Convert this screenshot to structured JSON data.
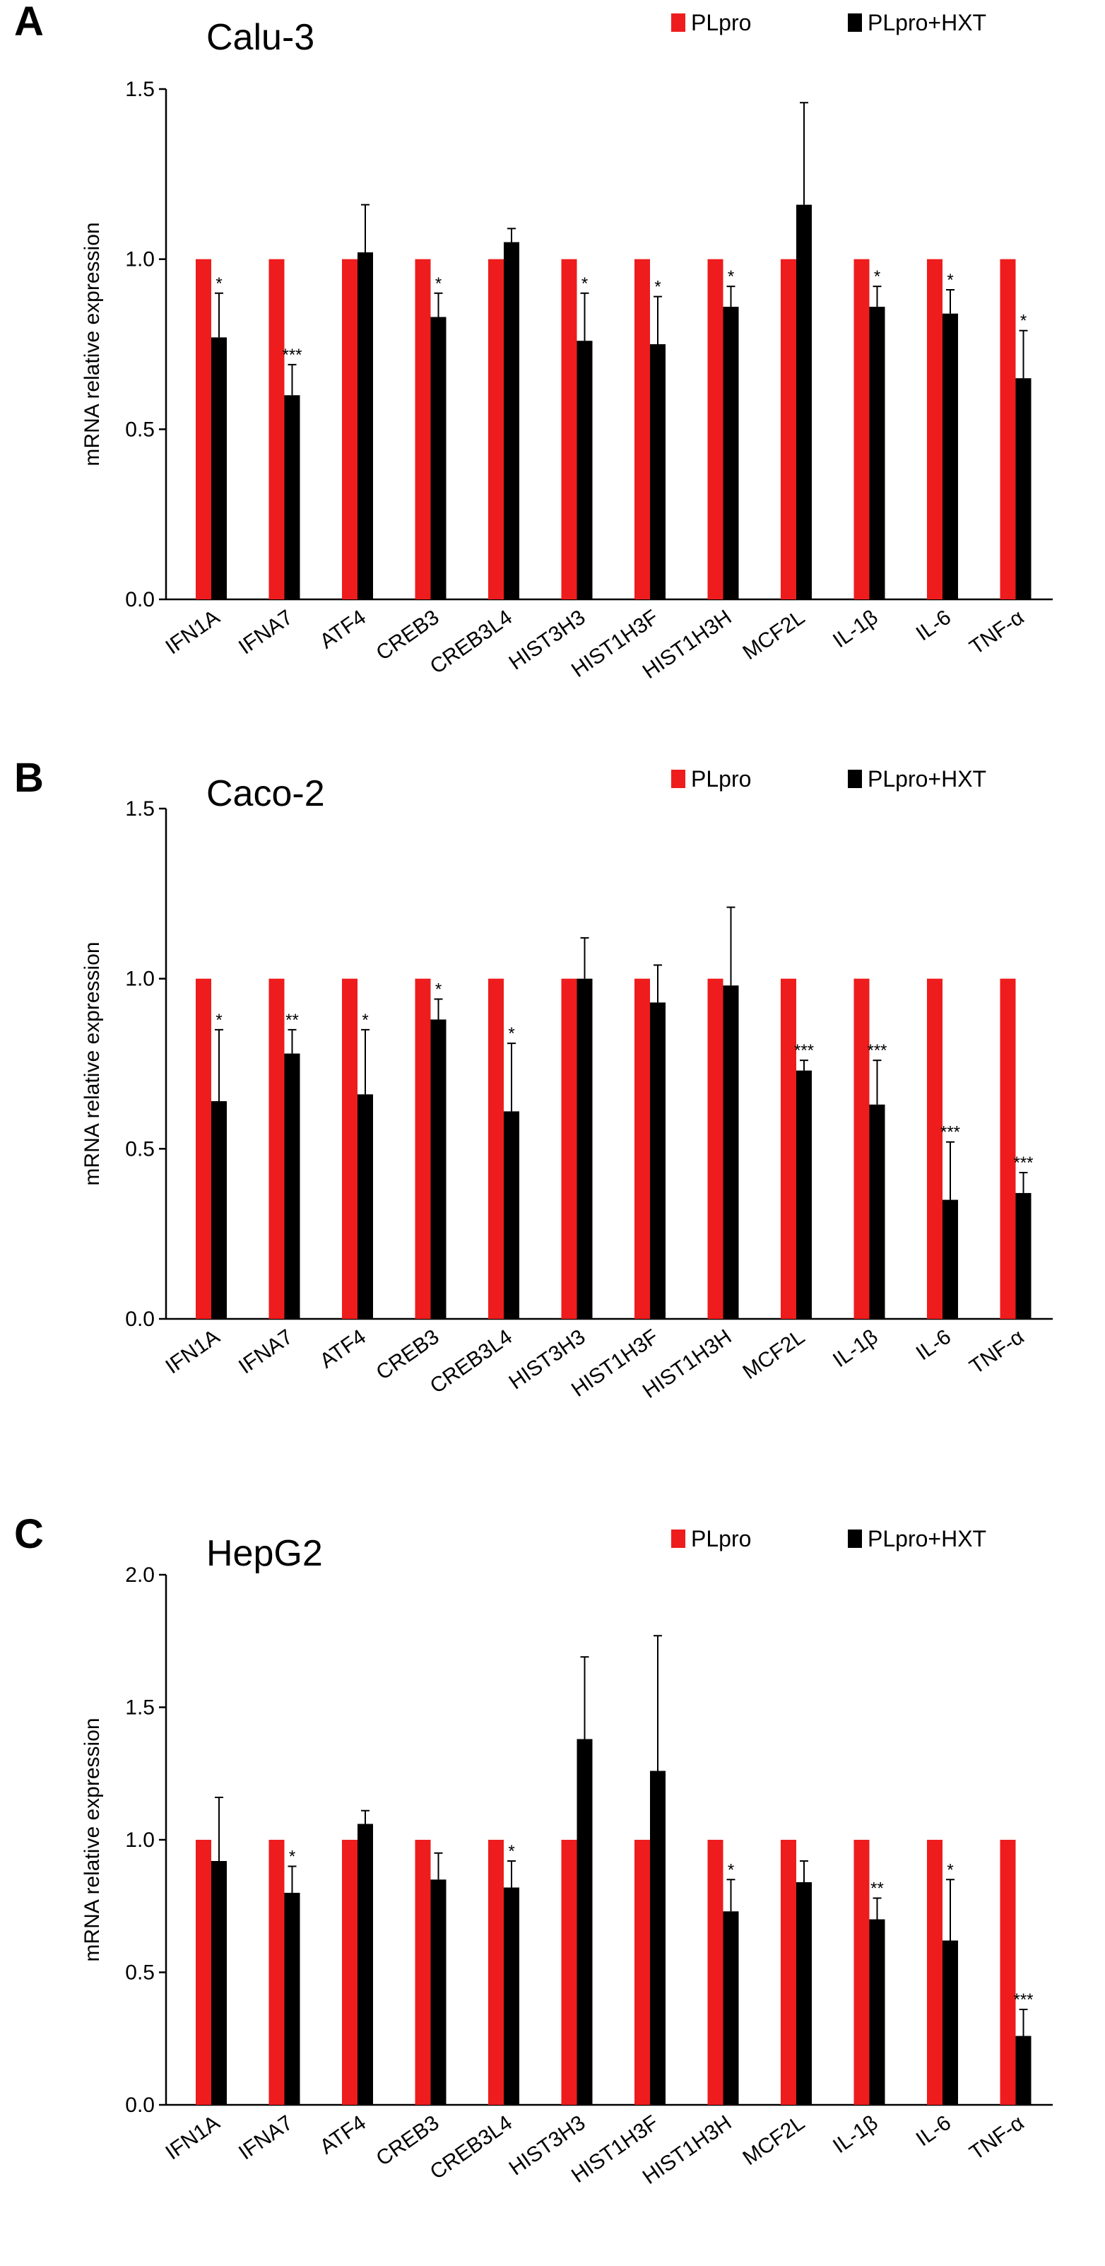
{
  "colors": {
    "plpro": "#ee1c1c",
    "plpro_hxt": "#000000"
  },
  "chart_data": [
    {
      "type": "bar",
      "panel": "A",
      "title": "Calu-3",
      "ylabel": "mRNA relative expression",
      "xlabel": "",
      "ylim": [
        0,
        1.5
      ],
      "yticks": [
        "0.0",
        "0.5",
        "1.0",
        "1.5"
      ],
      "categories": [
        "IFN1A",
        "IFNA7",
        "ATF4",
        "CREB3",
        "CREB3L4",
        "HIST3H3",
        "HIST1H3F",
        "HIST1H3H",
        "MCF2L",
        "IL-1β",
        "IL-6",
        "TNF-α"
      ],
      "series": [
        {
          "name": "PLpro",
          "values": [
            1,
            1,
            1,
            1,
            1,
            1,
            1,
            1,
            1,
            1,
            1,
            1
          ]
        },
        {
          "name": "PLpro+HXT",
          "values": [
            0.77,
            0.6,
            1.02,
            0.83,
            1.05,
            0.76,
            0.75,
            0.86,
            1.16,
            0.86,
            0.84,
            0.65
          ],
          "errors": [
            0.13,
            0.09,
            0.14,
            0.07,
            0.04,
            0.14,
            0.14,
            0.06,
            0.3,
            0.06,
            0.07,
            0.14
          ],
          "significance": [
            "*",
            "***",
            "",
            "*",
            "",
            "*",
            "*",
            "*",
            "",
            "*",
            "*",
            "*"
          ]
        }
      ]
    },
    {
      "type": "bar",
      "panel": "B",
      "title": "Caco-2",
      "ylabel": "mRNA relative expression",
      "xlabel": "",
      "ylim": [
        0,
        1.5
      ],
      "yticks": [
        "0.0",
        "0.5",
        "1.0",
        "1.5"
      ],
      "categories": [
        "IFN1A",
        "IFNA7",
        "ATF4",
        "CREB3",
        "CREB3L4",
        "HIST3H3",
        "HIST1H3F",
        "HIST1H3H",
        "MCF2L",
        "IL-1β",
        "IL-6",
        "TNF-α"
      ],
      "series": [
        {
          "name": "PLpro",
          "values": [
            1,
            1,
            1,
            1,
            1,
            1,
            1,
            1,
            1,
            1,
            1,
            1
          ]
        },
        {
          "name": "PLpro+HXT",
          "values": [
            0.64,
            0.78,
            0.66,
            0.88,
            0.61,
            1.0,
            0.93,
            0.98,
            0.73,
            0.63,
            0.35,
            0.37
          ],
          "errors": [
            0.21,
            0.07,
            0.19,
            0.06,
            0.2,
            0.12,
            0.11,
            0.23,
            0.03,
            0.13,
            0.17,
            0.06
          ],
          "significance": [
            "*",
            "**",
            "*",
            "*",
            "*",
            "",
            "",
            "",
            "***",
            "***",
            "***",
            "***"
          ]
        }
      ]
    },
    {
      "type": "bar",
      "panel": "C",
      "title": "HepG2",
      "ylabel": "mRNA relative expression",
      "xlabel": "",
      "ylim": [
        0,
        2.0
      ],
      "yticks": [
        "0.0",
        "0.5",
        "1.0",
        "1.5",
        "2.0"
      ],
      "categories": [
        "IFN1A",
        "IFNA7",
        "ATF4",
        "CREB3",
        "CREB3L4",
        "HIST3H3",
        "HIST1H3F",
        "HIST1H3H",
        "MCF2L",
        "IL-1β",
        "IL-6",
        "TNF-α"
      ],
      "series": [
        {
          "name": "PLpro",
          "values": [
            1,
            1,
            1,
            1,
            1,
            1,
            1,
            1,
            1,
            1,
            1,
            1
          ]
        },
        {
          "name": "PLpro+HXT",
          "values": [
            0.92,
            0.8,
            1.06,
            0.85,
            0.82,
            1.38,
            1.26,
            0.73,
            0.84,
            0.7,
            0.62,
            0.26
          ],
          "errors": [
            0.24,
            0.1,
            0.05,
            0.1,
            0.1,
            0.31,
            0.51,
            0.12,
            0.08,
            0.08,
            0.23,
            0.1
          ],
          "significance": [
            "",
            "*",
            "",
            "",
            "*",
            "",
            "",
            "*",
            "",
            "**",
            "*",
            "***"
          ]
        }
      ]
    }
  ]
}
